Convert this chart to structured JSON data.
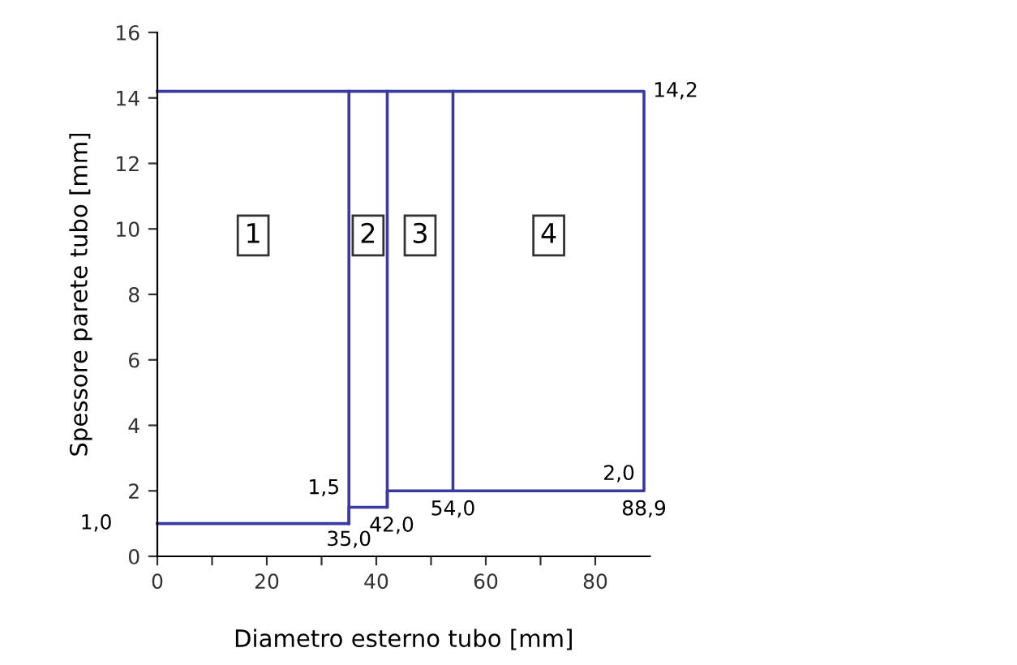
{
  "chart_data": {
    "type": "line",
    "xlabel": "Diametro esterno tubo [mm]",
    "ylabel": "Spessore parete tubo [mm]",
    "series": [
      {
        "color": "#3a3aa0",
        "x": [
          0,
          35,
          35,
          42,
          42,
          88.9,
          88.9,
          0
        ],
        "values": [
          1.0,
          1.0,
          1.5,
          1.5,
          2.0,
          2.0,
          14.2,
          14.2
        ]
      },
      {
        "color": "#3a3aa0",
        "x": [
          35,
          35
        ],
        "values": [
          1.0,
          14.2
        ]
      },
      {
        "color": "#3a3aa0",
        "x": [
          42,
          42
        ],
        "values": [
          1.5,
          14.2
        ]
      },
      {
        "color": "#3a3aa0",
        "x": [
          54,
          54
        ],
        "values": [
          2.0,
          14.2
        ]
      }
    ],
    "xlim": [
      0,
      90
    ],
    "ylim": [
      0,
      16
    ],
    "xticks": [
      0,
      {
        "value": 10,
        "label": null
      },
      20,
      {
        "value": 30,
        "label": null
      },
      40,
      {
        "value": 50,
        "label": null
      },
      60,
      {
        "value": 70,
        "label": null
      },
      80
    ],
    "yticks": [
      0,
      2,
      4,
      6,
      8,
      10,
      12,
      14,
      16
    ],
    "annotations": [
      {
        "text": "14,2",
        "x": 88.9,
        "y": 14.2
      },
      {
        "text": "1,0",
        "x": 0,
        "y": 1.0
      },
      {
        "text": "1,5",
        "x": 35,
        "y": 1.5
      },
      {
        "text": "35,0",
        "x": 35,
        "y": 1.0
      },
      {
        "text": "42,0",
        "x": 42,
        "y": 1.5
      },
      {
        "text": "54,0",
        "x": 54,
        "y": 2.0
      },
      {
        "text": "2,0",
        "x": 88.9,
        "y": 2.0
      },
      {
        "text": "88,9",
        "x": 88.9,
        "y": 2.0
      },
      {
        "text": "1",
        "x": 17.5,
        "y": 9.8
      },
      {
        "text": "2",
        "x": 38.5,
        "y": 9.8
      },
      {
        "text": "3",
        "x": 48,
        "y": 9.8
      },
      {
        "text": "4",
        "x": 71.5,
        "y": 9.8
      }
    ],
    "grid": false,
    "legend": false,
    "marker": "none",
    "line_style": "solid"
  }
}
